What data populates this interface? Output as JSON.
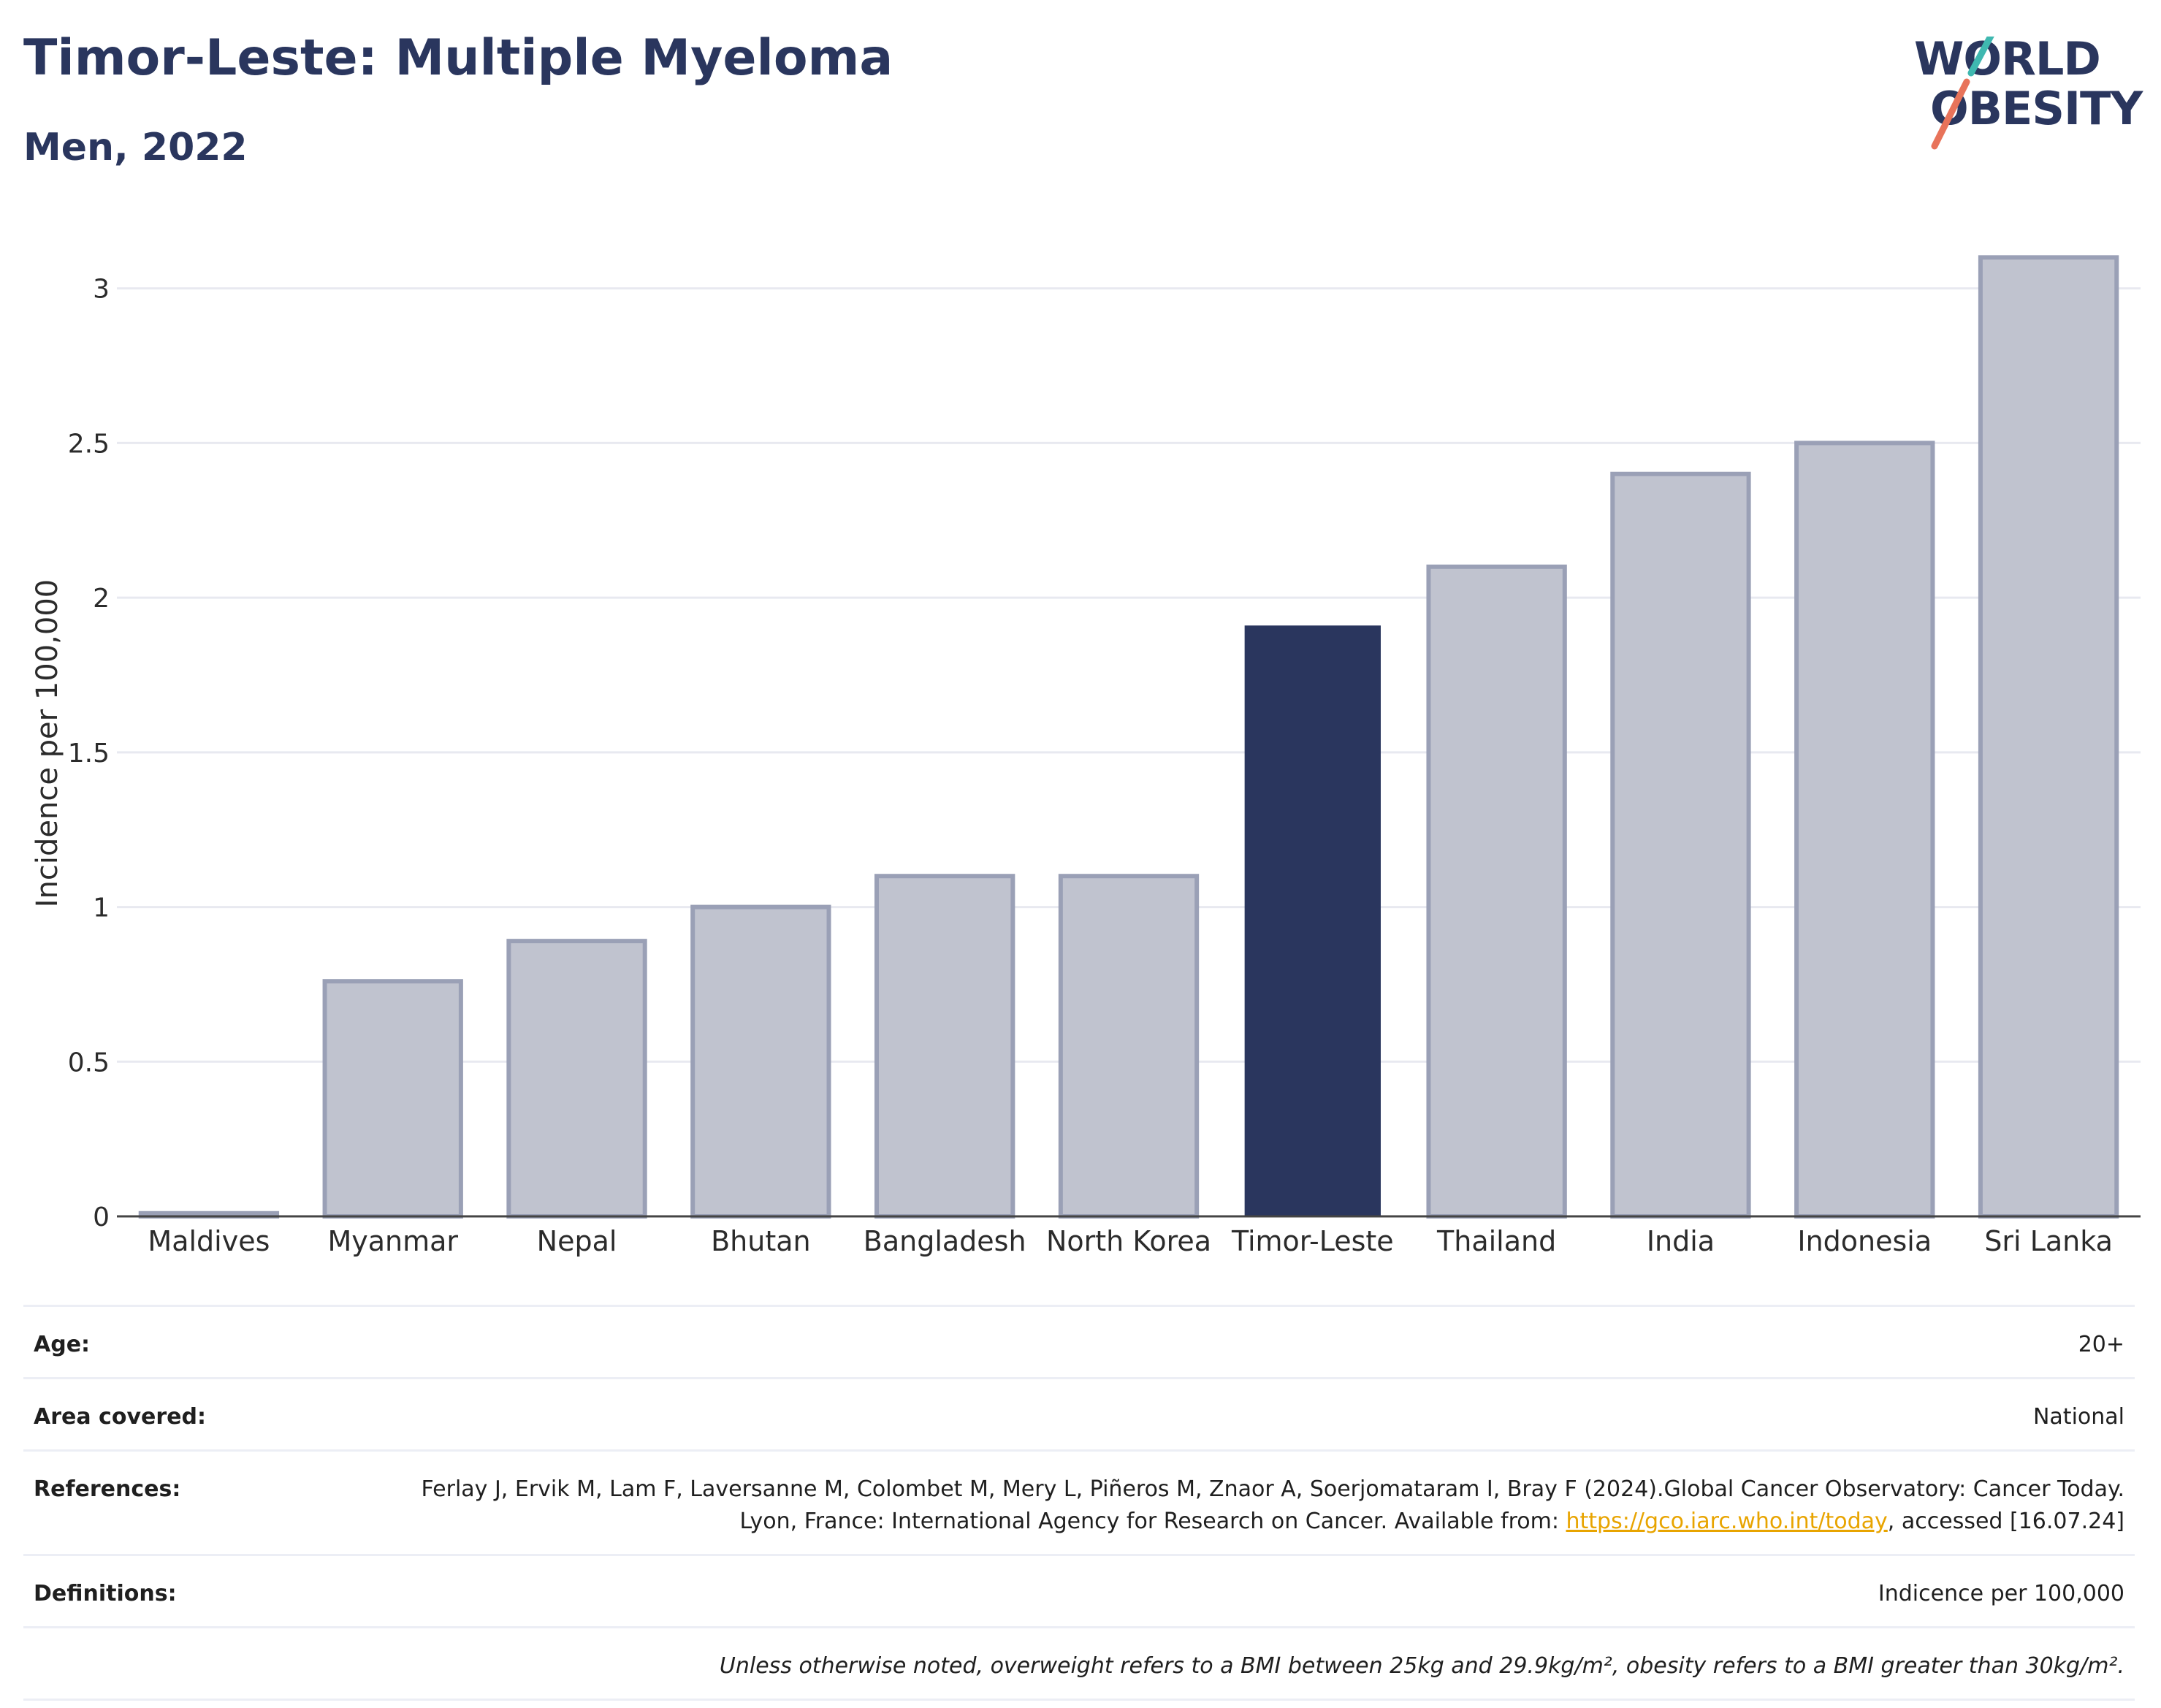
{
  "header": {
    "title": "Timor-Leste: Multiple Myeloma",
    "subtitle": "Men, 2022"
  },
  "logo": {
    "line1": "WORLD",
    "line2": "OBESITY",
    "accent_teal": "#3fb8b0",
    "accent_coral": "#e8735a"
  },
  "chart_data": {
    "type": "bar",
    "categories": [
      "Maldives",
      "Myanmar",
      "Nepal",
      "Bhutan",
      "Bangladesh",
      "North Korea",
      "Timor-Leste",
      "Thailand",
      "India",
      "Indonesia",
      "Sri Lanka"
    ],
    "values": [
      0.01,
      0.76,
      0.89,
      1.0,
      1.1,
      1.1,
      1.91,
      2.1,
      2.4,
      2.5,
      3.1
    ],
    "highlight": "Timor-Leste",
    "ylabel": "Incidence per 100,000",
    "xlabel": "",
    "ylim": [
      0,
      3.2
    ],
    "yticks": [
      0,
      0.5,
      1,
      1.5,
      2,
      2.5,
      3
    ],
    "ytick_labels": [
      "0",
      "0.5",
      "1",
      "1.5",
      "2",
      "2.5",
      "3"
    ],
    "grid": true,
    "colors": {
      "highlight": "#2a365e",
      "other_fill": "#c0c3cf",
      "other_stroke": "#9aa0b6",
      "grid": "#e8e9f0"
    }
  },
  "info": {
    "age": {
      "label": "Age:",
      "value": "20+"
    },
    "area": {
      "label": "Area covered:",
      "value": "National"
    },
    "references": {
      "label": "References:",
      "text_before": "Ferlay J, Ervik M, Lam F, Laversanne M, Colombet M, Mery L, Piñeros M, Znaor A, Soerjomataram I, Bray F (2024).Global Cancer Observatory: Cancer Today. Lyon, France: International Agency for Research on Cancer. Available from: ",
      "link": "https://gco.iarc.who.int/today",
      "text_after": ", accessed [16.07.24]"
    },
    "definitions": {
      "label": "Definitions:",
      "value": "Indicence per 100,000"
    },
    "note": "Unless otherwise noted, overweight refers to a BMI between 25kg and 29.9kg/m², obesity refers to a BMI greater than 30kg/m²."
  }
}
